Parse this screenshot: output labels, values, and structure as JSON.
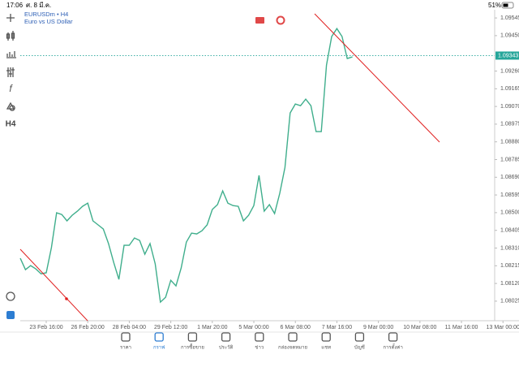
{
  "status_bar": {
    "time": "17:06",
    "date": "ศ. 8 มี.ค.",
    "battery": "51%"
  },
  "toolbar": {
    "timeframe": "H4"
  },
  "chart_data": {
    "type": "line",
    "title": "EURUSDm • H4",
    "subtitle": "Euro vs US Dollar",
    "color": "#3fae8c",
    "values": [
      1.08255,
      1.08194,
      1.08216,
      1.08198,
      1.08172,
      1.08177,
      1.08312,
      1.08499,
      1.0849,
      1.08456,
      1.08486,
      1.08508,
      1.08534,
      1.08551,
      1.08456,
      1.08434,
      1.08412,
      1.08334,
      1.08233,
      1.08142,
      1.08325,
      1.08325,
      1.08364,
      1.08351,
      1.08277,
      1.08334,
      1.08225,
      1.0802,
      1.08046,
      1.08137,
      1.08107,
      1.08203,
      1.08342,
      1.0839,
      1.08386,
      1.08403,
      1.08434,
      1.08517,
      1.08543,
      1.08617,
      1.08551,
      1.08538,
      1.08534,
      1.08456,
      1.08486,
      1.08538,
      1.087,
      1.08508,
      1.08543,
      1.08495,
      1.08604,
      1.08743,
      1.09035,
      1.09083,
      1.09074,
      1.09109,
      1.09074,
      1.08935,
      1.08935,
      1.09292,
      1.09445,
      1.09488,
      1.09445,
      1.09327,
      1.09336
    ],
    "price_line": {
      "value": 1.09343,
      "color": "#26a69a"
    },
    "xlim": [
      0,
      91.4
    ],
    "xticks": [
      {
        "value": 5,
        "label": "23 Feb 16:00"
      },
      {
        "value": 13,
        "label": "26 Feb 20:00"
      },
      {
        "value": 21,
        "label": "28 Feb 04:00"
      },
      {
        "value": 29,
        "label": "29 Feb 12:00"
      },
      {
        "value": 37,
        "label": "1 Mar 20:00"
      },
      {
        "value": 45,
        "label": "5 Mar 00:00"
      },
      {
        "value": 53,
        "label": "6 Mar 08:00"
      },
      {
        "value": 61,
        "label": "7 Mar 16:00"
      },
      {
        "value": 69,
        "label": "9 Mar 00:00"
      },
      {
        "value": 77,
        "label": "10 Mar 08:00"
      },
      {
        "value": 85,
        "label": "11 Mar 16:00"
      },
      {
        "value": 93,
        "label": "13 Mar 00:00"
      }
    ],
    "ylim": [
      1.0792,
      1.09589
    ],
    "yticks": [
      1.09545,
      {
        "value": 1.0945,
        "label": "1.09450"
      },
      {
        "value": 1.0926,
        "label": "1.09260"
      },
      1.09165,
      {
        "value": 1.0907,
        "label": "1.09070"
      },
      1.08975,
      {
        "value": 1.0888,
        "label": "1.08880"
      },
      1.08785,
      {
        "value": 1.0869,
        "label": "1.08690"
      },
      1.08595,
      {
        "value": 1.085,
        "label": "1.08500"
      },
      1.08405,
      {
        "value": 1.0831,
        "label": "1.08310"
      },
      1.08215,
      {
        "value": 1.0812,
        "label": "1.08120"
      },
      1.08025
    ]
  },
  "bottom_nav": {
    "active": 1,
    "items": [
      "ราคา",
      "กราฟ",
      "การซื้อขาย",
      "ประวัติ",
      "ข่าว",
      "กล่องจดหมาย",
      "แชท",
      "บัญชี",
      "การตั้งค่า"
    ]
  }
}
